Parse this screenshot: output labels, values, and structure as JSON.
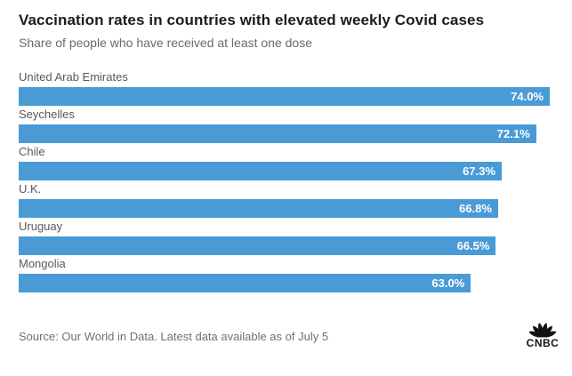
{
  "chart": {
    "title": "Vaccination rates in countries with elevated weekly Covid cases",
    "subtitle": "Share of people who have received at least one dose",
    "source": "Source: Our World in Data. Latest data available as of July 5",
    "logo_text": "CNBC"
  },
  "chart_data": {
    "type": "bar",
    "orientation": "horizontal",
    "title": "Vaccination rates in countries with elevated weekly Covid cases",
    "subtitle": "Share of people who have received at least one dose",
    "categories": [
      "United Arab Emirates",
      "Seychelles",
      "Chile",
      "U.K.",
      "Uruguay",
      "Mongolia"
    ],
    "values": [
      74.0,
      72.1,
      67.3,
      66.8,
      66.5,
      63.0
    ],
    "value_labels": [
      "74.0%",
      "72.1%",
      "67.3%",
      "66.8%",
      "66.5%",
      "63.0%"
    ],
    "xlim": [
      0,
      74
    ],
    "grid": false,
    "legend": false,
    "bar_color": "#4a9bd5",
    "value_label_color": "#ffffff",
    "category_label_color": "#58595b"
  }
}
